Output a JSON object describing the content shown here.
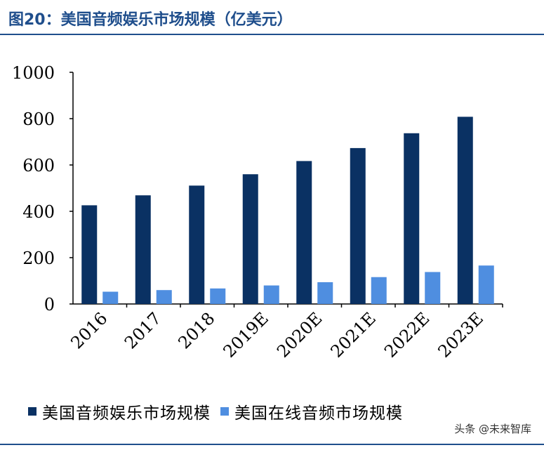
{
  "title": "图20：美国音频娱乐市场规模（亿美元）",
  "watermark": "头条 @未来智库",
  "colors": {
    "series1": "#0a3163",
    "series2": "#4f8ee0",
    "title": "#1f4e8c"
  },
  "chart_data": {
    "type": "bar",
    "categories": [
      "2016",
      "2017",
      "2018",
      "2019E",
      "2020E",
      "2021E",
      "2022E",
      "2023E"
    ],
    "series": [
      {
        "name": "美国音频娱乐市场规模",
        "values": [
          426,
          469,
          511,
          560,
          617,
          673,
          737,
          808
        ]
      },
      {
        "name": "美国在线音频市场规模",
        "values": [
          53,
          60,
          67,
          80,
          94,
          116,
          138,
          166
        ]
      }
    ],
    "yticks": [
      0,
      200,
      400,
      600,
      800,
      1000
    ],
    "ylim": [
      0,
      1000
    ],
    "xlabel": "",
    "ylabel": "",
    "grid": false,
    "legend_position": "bottom"
  }
}
